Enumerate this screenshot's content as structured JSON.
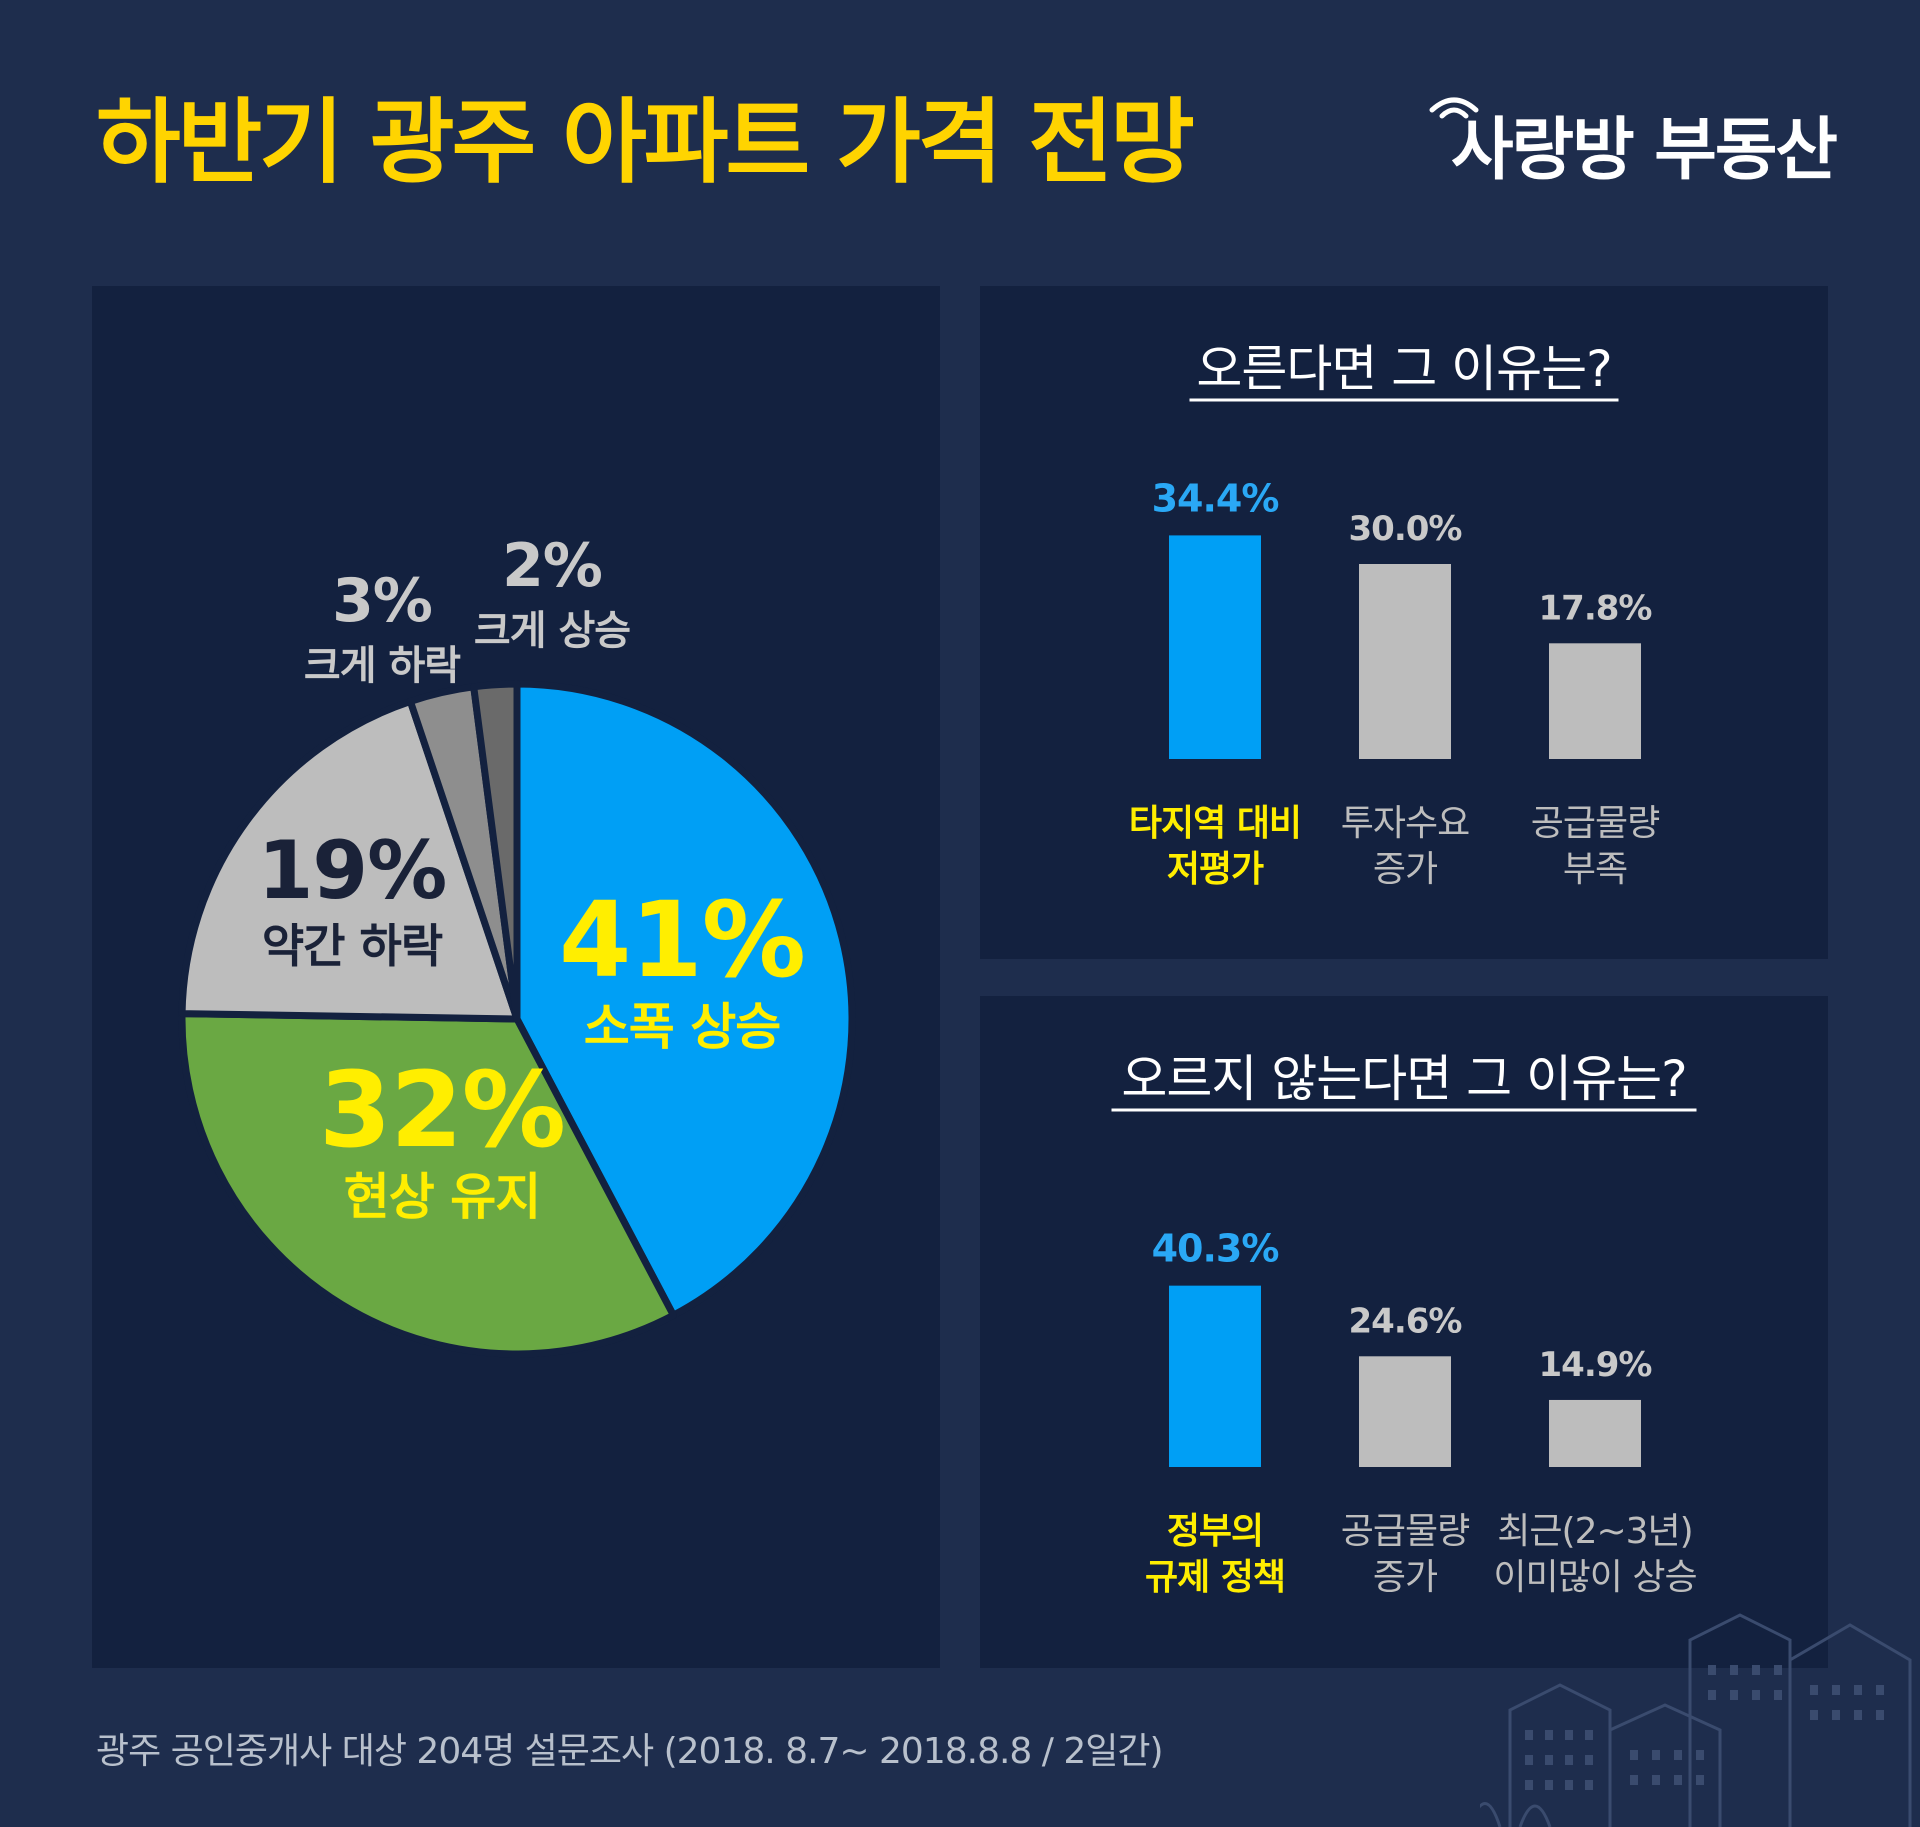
{
  "title": "하반기 광주 아파트 가격 전망",
  "brand": "사랑방 부동산",
  "footer": "광주 공인중개사 대상 204명 설문조사 (2018. 8.7~ 2018.8.8 / 2일간)",
  "colors": {
    "background": "#1e2d4d",
    "panel": "#13213f",
    "title_yellow": "#ffd400",
    "highlight_blue": "#009ff5",
    "green": "#6aa843",
    "light_gray": "#bdbdbd",
    "mid_gray": "#8e8e8e",
    "dark_gray": "#6a6a6a",
    "label_yellow": "#ffee00"
  },
  "chart_data": [
    {
      "type": "pie",
      "slices": [
        {
          "name": "소폭 상승",
          "value": 41,
          "label": "41%",
          "color": "#009ff5"
        },
        {
          "name": "현상 유지",
          "value": 32,
          "label": "32%",
          "color": "#6aa843"
        },
        {
          "name": "약간 하락",
          "value": 19,
          "label": "19%",
          "color": "#bdbdbd"
        },
        {
          "name": "크게 하락",
          "value": 3,
          "label": "3%",
          "color": "#8e8e8e"
        },
        {
          "name": "크게 상승",
          "value": 2,
          "label": "2%",
          "color": "#6a6a6a"
        }
      ]
    },
    {
      "type": "bar",
      "title": "오른다면 그 이유는?",
      "categories": [
        [
          "타지역 대비",
          "저평가"
        ],
        [
          "투자수요",
          "증가"
        ],
        [
          "공급물량",
          "부족"
        ]
      ],
      "values": [
        34.4,
        30.0,
        17.8
      ],
      "value_labels": [
        "34.4%",
        "30.0%",
        "17.8%"
      ],
      "highlight_index": 0
    },
    {
      "type": "bar",
      "title": "오르지 않는다면 그 이유는?",
      "categories": [
        [
          "정부의",
          "규제 정책"
        ],
        [
          "공급물량",
          "증가"
        ],
        [
          "최근(2~3년)",
          "이미많이 상승"
        ]
      ],
      "values": [
        40.3,
        24.6,
        14.9
      ],
      "value_labels": [
        "40.3%",
        "24.6%",
        "14.9%"
      ],
      "highlight_index": 0
    }
  ]
}
